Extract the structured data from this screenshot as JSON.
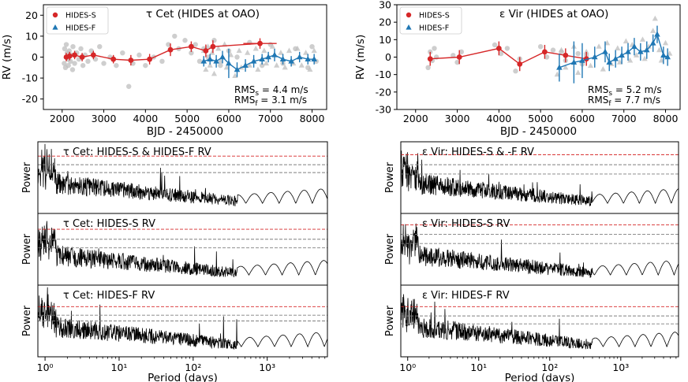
{
  "colors": {
    "hides_s": "#d62728",
    "hides_f": "#1f77b4",
    "scatter": "#bdbdbd",
    "threshold_red": "#d62728",
    "threshold_gray": "#7f7f7f"
  },
  "chart_data": [
    {
      "type": "scatter",
      "title": "τ Cet (HIDES at OAO)",
      "xlabel": "BJD - 2450000",
      "ylabel": "RV (m/s)",
      "xlim": [
        1550,
        8350
      ],
      "ylim": [
        -25,
        25
      ],
      "xticks": [
        2000,
        3000,
        4000,
        5000,
        6000,
        7000,
        8000
      ],
      "yticks": [
        -20,
        -10,
        0,
        10,
        20
      ],
      "legend": [
        "HIDES-S",
        "HIDES-F"
      ],
      "rms": [
        {
          "label": "RMS",
          "sub": "s",
          "value": " =  4.4 m/s"
        },
        {
          "label": "RMS",
          "sub": "f",
          "value": " =  3.1 m/s"
        }
      ],
      "series": [
        {
          "name": "HIDES-S",
          "x": [
            2100,
            2180,
            2300,
            2480,
            2750,
            3230,
            3650,
            4100,
            4600,
            5100,
            5450,
            5620,
            6750
          ],
          "y": [
            0,
            0.5,
            1,
            0,
            1,
            -1,
            -1.5,
            -1,
            3.5,
            5,
            3,
            5,
            6.5
          ],
          "yerr": [
            2,
            2,
            2,
            2,
            2,
            2,
            2.5,
            2.5,
            3,
            2.5,
            3,
            3,
            2.5
          ],
          "xerr": [
            0,
            0,
            0,
            0,
            0,
            0,
            0,
            0,
            0,
            0,
            0,
            0,
            400
          ]
        },
        {
          "name": "HIDES-F",
          "x": [
            5400,
            5550,
            5700,
            5850,
            6000,
            6200,
            6400,
            6600,
            6800,
            6950,
            7100,
            7300,
            7500,
            7700,
            7900,
            8050
          ],
          "y": [
            -2,
            -1,
            -2,
            0,
            -3,
            -6,
            -4,
            -2,
            -1,
            0,
            1,
            -1,
            -2,
            0,
            -1,
            -1
          ],
          "yerr": [
            2.5,
            2.5,
            3,
            3,
            7,
            3.5,
            3,
            3,
            2.5,
            2.5,
            3,
            2.5,
            2.5,
            2.5,
            2.5,
            2.5
          ]
        }
      ],
      "gray_points": [
        [
          2050,
          -3
        ],
        [
          2060,
          4
        ],
        [
          2080,
          -5
        ],
        [
          2100,
          6
        ],
        [
          2120,
          2
        ],
        [
          2140,
          -1
        ],
        [
          2150,
          -4
        ],
        [
          2170,
          3
        ],
        [
          2200,
          -2
        ],
        [
          2220,
          1
        ],
        [
          2250,
          -6
        ],
        [
          2260,
          5
        ],
        [
          2300,
          -3
        ],
        [
          2350,
          2
        ],
        [
          2400,
          -1
        ],
        [
          2450,
          4
        ],
        [
          2500,
          -4
        ],
        [
          2550,
          1
        ],
        [
          2620,
          -2
        ],
        [
          2700,
          3
        ],
        [
          2800,
          -1
        ],
        [
          2900,
          5
        ],
        [
          3000,
          -3
        ],
        [
          3150,
          0
        ],
        [
          3300,
          -4
        ],
        [
          3450,
          2
        ],
        [
          3600,
          -14
        ],
        [
          3700,
          -3
        ],
        [
          3850,
          1
        ],
        [
          4000,
          -4
        ],
        [
          4200,
          0
        ],
        [
          4400,
          -2
        ],
        [
          4550,
          6
        ],
        [
          4700,
          10
        ],
        [
          4800,
          4
        ],
        [
          4950,
          8
        ],
        [
          5100,
          2
        ],
        [
          5200,
          6
        ],
        [
          5300,
          -2
        ],
        [
          5400,
          4
        ],
        [
          5500,
          0
        ],
        [
          5650,
          8
        ],
        [
          5800,
          -4
        ],
        [
          6000,
          3
        ],
        [
          6200,
          0
        ],
        [
          6500,
          7
        ],
        [
          6800,
          -4
        ],
        [
          7000,
          6
        ],
        [
          7300,
          -3
        ],
        [
          7600,
          4
        ],
        [
          7900,
          -5
        ],
        [
          8000,
          5
        ],
        [
          8100,
          -2
        ]
      ],
      "gray_triangles": [
        [
          5400,
          3
        ],
        [
          5450,
          -6
        ],
        [
          5500,
          5
        ],
        [
          5550,
          -4
        ],
        [
          5600,
          2
        ],
        [
          5650,
          -8
        ],
        [
          5750,
          4
        ],
        [
          5800,
          -2
        ],
        [
          5900,
          6
        ],
        [
          5950,
          -5
        ],
        [
          6050,
          1
        ],
        [
          6150,
          -9
        ],
        [
          6250,
          3
        ],
        [
          6300,
          -5
        ],
        [
          6450,
          2
        ],
        [
          6500,
          -4
        ],
        [
          6650,
          4
        ],
        [
          6700,
          -6
        ],
        [
          6850,
          3
        ],
        [
          6900,
          -3
        ],
        [
          7050,
          5
        ],
        [
          7150,
          -4
        ],
        [
          7250,
          2
        ],
        [
          7350,
          -5
        ],
        [
          7450,
          3
        ],
        [
          7550,
          -3
        ],
        [
          7650,
          4
        ],
        [
          7750,
          -4
        ],
        [
          7850,
          2
        ],
        [
          7950,
          -6
        ],
        [
          8050,
          3
        ]
      ]
    },
    {
      "type": "scatter",
      "title": "ε Vir (HIDES at OAO)",
      "xlabel": "BJD - 2450000",
      "ylabel": "RV (m/s)",
      "xlim": [
        1550,
        8350
      ],
      "ylim": [
        -30,
        30
      ],
      "xticks": [
        2000,
        3000,
        4000,
        5000,
        6000,
        7000,
        8000
      ],
      "yticks": [
        -30,
        -20,
        -10,
        0,
        10,
        20,
        30
      ],
      "legend": [
        "HIDES-S",
        "HIDES-F"
      ],
      "rms": [
        {
          "label": "RMS",
          "sub": "s",
          "value": " =  5.2 m/s"
        },
        {
          "label": "RMS",
          "sub": "f",
          "value": " =  7.7 m/s"
        }
      ],
      "series": [
        {
          "name": "HIDES-S",
          "x": [
            2350,
            3050,
            4000,
            4500,
            5100,
            5600,
            6100
          ],
          "y": [
            -1,
            0,
            5,
            -4,
            3,
            1,
            -1
          ],
          "yerr": [
            4,
            4,
            4,
            4,
            4,
            4,
            4
          ],
          "xerr": [
            0,
            0,
            0,
            0,
            0,
            0,
            0
          ]
        },
        {
          "name": "HIDES-F",
          "x": [
            5450,
            5800,
            6000,
            6300,
            6550,
            6650,
            6800,
            6950,
            7100,
            7250,
            7400,
            7550,
            7700,
            7800,
            7950,
            8050
          ],
          "y": [
            -6,
            -3,
            -2,
            0,
            3,
            -3,
            -1,
            1,
            3,
            6,
            3,
            4,
            8,
            13,
            1,
            0
          ],
          "yerr": [
            8,
            12,
            10,
            6,
            6,
            5,
            5,
            5,
            5,
            5,
            5,
            5,
            5,
            5,
            5,
            5
          ]
        }
      ],
      "gray_points": [
        [
          2300,
          -6
        ],
        [
          2350,
          3
        ],
        [
          2400,
          -2
        ],
        [
          2450,
          5
        ],
        [
          2500,
          0
        ],
        [
          2900,
          1
        ],
        [
          3000,
          -3
        ],
        [
          3100,
          3
        ],
        [
          3900,
          7
        ],
        [
          4050,
          2
        ],
        [
          4200,
          5
        ],
        [
          4400,
          -8
        ],
        [
          4500,
          -1
        ],
        [
          5000,
          6
        ],
        [
          5150,
          0
        ],
        [
          5300,
          4
        ],
        [
          5500,
          3
        ],
        [
          5600,
          -2
        ],
        [
          5900,
          2
        ],
        [
          6000,
          -4
        ],
        [
          6100,
          1
        ]
      ],
      "gray_triangles": [
        [
          5400,
          -10
        ],
        [
          5500,
          4
        ],
        [
          5600,
          -6
        ],
        [
          5800,
          6
        ],
        [
          5900,
          -9
        ],
        [
          6100,
          3
        ],
        [
          6200,
          -5
        ],
        [
          6400,
          6
        ],
        [
          6500,
          -7
        ],
        [
          6600,
          8
        ],
        [
          6700,
          -4
        ],
        [
          6850,
          5
        ],
        [
          6900,
          -3
        ],
        [
          7050,
          9
        ],
        [
          7150,
          -2
        ],
        [
          7200,
          7
        ],
        [
          7300,
          1
        ],
        [
          7450,
          10
        ],
        [
          7500,
          -1
        ],
        [
          7600,
          6
        ],
        [
          7700,
          15
        ],
        [
          7750,
          22
        ],
        [
          7850,
          4
        ],
        [
          7900,
          -2
        ],
        [
          8000,
          8
        ],
        [
          8100,
          2
        ]
      ]
    },
    {
      "type": "line",
      "title": "τ Cet: HIDES-S & HIDES-F RV",
      "xlabel": "",
      "ylabel": "Power",
      "xscale": "log",
      "xlim": [
        0.8,
        6500
      ],
      "thresholds": [
        0.8,
        0.68,
        0.57
      ],
      "seed": 11
    },
    {
      "type": "line",
      "title": "τ Cet: HIDES-S RV",
      "xlabel": "",
      "ylabel": "Power",
      "xscale": "log",
      "xlim": [
        0.8,
        6500
      ],
      "thresholds": [
        0.78,
        0.64,
        0.52
      ],
      "seed": 23
    },
    {
      "type": "line",
      "title": "τ Cet: HIDES-F RV",
      "xlabel": "Period (days)",
      "ylabel": "Power",
      "xscale": "log",
      "xlim": [
        0.8,
        6500
      ],
      "xticks": [
        "10⁰",
        "10¹",
        "10²",
        "10³"
      ],
      "thresholds": [
        0.7,
        0.58,
        0.5
      ],
      "seed": 37
    },
    {
      "type": "line",
      "title": "ε Vir: HIDES-S & -F RV",
      "xlabel": "",
      "ylabel": "Power",
      "xscale": "log",
      "xlim": [
        0.8,
        6500
      ],
      "thresholds": [
        0.82,
        0.68,
        0.55
      ],
      "seed": 41
    },
    {
      "type": "line",
      "title": "ε Vir: HIDES-S RV",
      "xlabel": "",
      "ylabel": "Power",
      "xscale": "log",
      "xlim": [
        0.8,
        6500
      ],
      "thresholds": [
        0.84,
        0.71,
        0.58
      ],
      "seed": 53
    },
    {
      "type": "line",
      "title": "ε Vir: HIDES-F RV",
      "xlabel": "Period (days)",
      "ylabel": "Power",
      "xscale": "log",
      "xlim": [
        0.8,
        6500
      ],
      "xticks": [
        "10⁰",
        "10¹",
        "10²",
        "10³"
      ],
      "thresholds": [
        0.7,
        0.57,
        0.46
      ],
      "seed": 67
    }
  ]
}
